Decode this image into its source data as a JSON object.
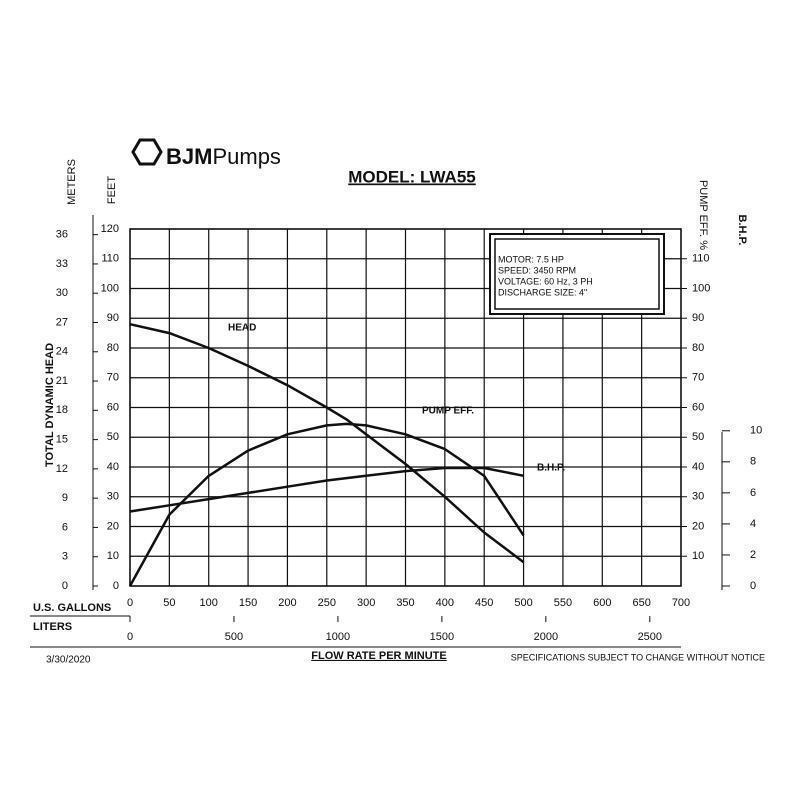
{
  "logo": {
    "bold": "BJM",
    "light": "Pumps"
  },
  "chart_data": {
    "type": "line",
    "title": "MODEL: LWA55",
    "specs": [
      "MOTOR: 7.5 HP",
      "SPEED: 3450 RPM",
      "VOLTAGE: 60 Hz, 3 PH",
      "DISCHARGE SIZE: 4\""
    ],
    "x": [
      0,
      50,
      100,
      150,
      200,
      250,
      275,
      300,
      350,
      400,
      450,
      500
    ],
    "xlabel": "FLOW RATE PER MINUTE",
    "x_unit_label": "U.S. GALLONS",
    "xlim": [
      0,
      700
    ],
    "xticks": [
      0,
      50,
      100,
      150,
      200,
      250,
      300,
      350,
      400,
      450,
      500,
      550,
      600,
      650,
      700
    ],
    "x2_unit_label": "LITERS",
    "x2lim": [
      0,
      2650
    ],
    "x2ticks": [
      0,
      500,
      1000,
      1500,
      2000,
      2500
    ],
    "ylabel": "TOTAL DYNAMIC HEAD",
    "y_unit_label": "FEET",
    "ylim": [
      0,
      120
    ],
    "yticks": [
      0,
      10,
      20,
      30,
      40,
      50,
      60,
      70,
      80,
      90,
      100,
      110,
      120
    ],
    "y_meters_label": "METERS",
    "y_meters_lim": [
      0,
      36.58
    ],
    "y_meters_ticks": [
      0,
      3,
      6,
      9,
      12,
      15,
      18,
      21,
      24,
      27,
      30,
      33,
      36
    ],
    "y2label": "PUMP EFF. %",
    "y2lim": [
      0,
      120
    ],
    "y2ticks": [
      10,
      20,
      30,
      40,
      50,
      60,
      70,
      80,
      90,
      100,
      110
    ],
    "y3label": "B.H.P.",
    "y3lim": [
      0,
      23
    ],
    "y3ticks": [
      0,
      2,
      4,
      6,
      8,
      10
    ],
    "grid": true,
    "series": [
      {
        "name": "HEAD",
        "color": "#111111",
        "values": [
          88,
          85,
          80,
          74,
          67.5,
          60,
          56,
          51,
          41,
          30,
          18,
          8
        ]
      },
      {
        "name": "PUMP EFF.",
        "color": "#111111",
        "axis": "y2",
        "values": [
          0,
          24,
          37,
          45.5,
          51,
          54,
          54.5,
          54,
          51,
          46,
          37,
          17
        ]
      },
      {
        "name": "B.H.P.",
        "color": "#111111",
        "axis": "y3",
        "values": [
          4.8,
          5.2,
          5.6,
          6.0,
          6.4,
          6.8,
          6.95,
          7.1,
          7.4,
          7.6,
          7.6,
          7.1
        ]
      }
    ]
  },
  "date": "3/30/2020",
  "notice": "SPECIFICATIONS SUBJECT TO CHANGE WITHOUT NOTICE"
}
